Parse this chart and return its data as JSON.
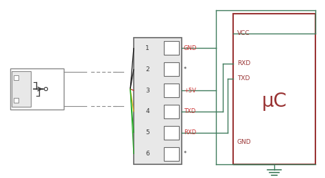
{
  "bg_color": "#ffffff",
  "pin_labels": [
    "1",
    "2",
    "3",
    "4",
    "5",
    "6"
  ],
  "pin_signals": [
    "GND",
    "*",
    "+5V",
    "TXD",
    "RXD",
    "*"
  ],
  "signal_colors_right": [
    "#cc3333",
    "#333333",
    "#cc3333",
    "#cc3333",
    "#cc3333",
    "#333333"
  ],
  "wire_colors": [
    "#111111",
    "#111111",
    "#cc2222",
    "#ddaa00",
    "#22aa22",
    "#22aa22"
  ],
  "uc_color": "#993333",
  "uc_text": "μC",
  "line_color": "#3d7a5a",
  "usb_color": "#888888"
}
